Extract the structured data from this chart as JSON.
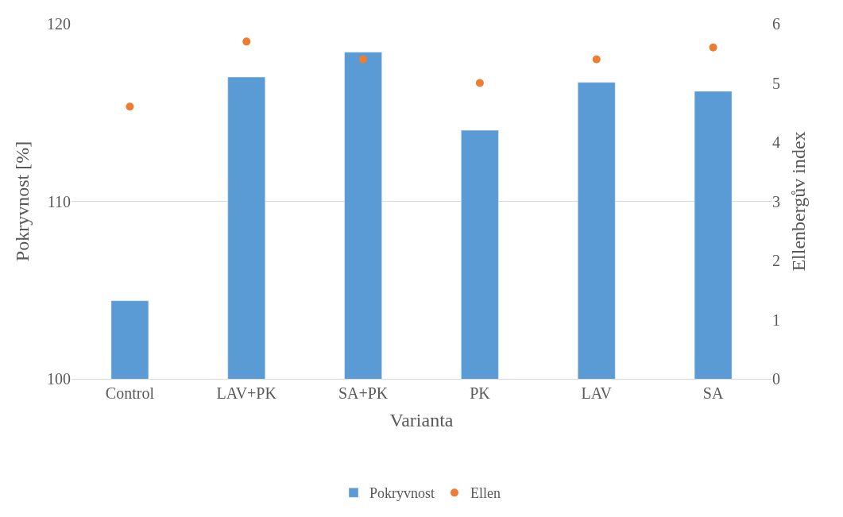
{
  "chart_data": {
    "type": "bar",
    "xlabel": "Varianta",
    "ylabel": "Pokryvnost [%]",
    "y2label": "Ellenbergův index",
    "categories": [
      "Control",
      "LAV+PK",
      "SA+PK",
      "PK",
      "LAV",
      "SA"
    ],
    "series": [
      {
        "name": "Pokryvnost",
        "color": "#5b9bd5",
        "values": [
          104.4,
          117.0,
          118.4,
          114.0,
          116.7,
          116.2
        ]
      },
      {
        "name": "Ellen",
        "type": "scatter",
        "axis": "y2",
        "marker": "circle",
        "color": "#ed7d31",
        "values": [
          4.6,
          5.7,
          5.4,
          5.0,
          5.4,
          5.6
        ]
      }
    ],
    "ylim": [
      100,
      120
    ],
    "yticks": [
      100,
      110,
      120
    ],
    "y2lim": [
      0,
      6
    ],
    "y2ticks": [
      0,
      1,
      2,
      3,
      4,
      5,
      6
    ],
    "grid": "y",
    "legend": "bottom"
  }
}
